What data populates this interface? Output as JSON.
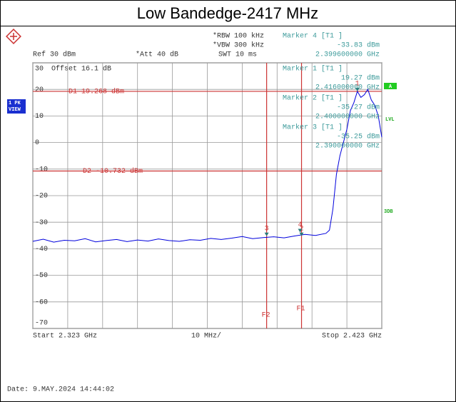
{
  "chart_data": {
    "type": "line",
    "title": "Low Bandedge-2417 MHz",
    "color": "#0000dd",
    "x": [
      2.323,
      2.326,
      2.329,
      2.332,
      2.335,
      2.338,
      2.341,
      2.344,
      2.347,
      2.35,
      2.353,
      2.356,
      2.359,
      2.362,
      2.365,
      2.368,
      2.371,
      2.374,
      2.377,
      2.38,
      2.383,
      2.386,
      2.389,
      2.392,
      2.395,
      2.398,
      2.401,
      2.404,
      2.407,
      2.408,
      2.409,
      2.41,
      2.411,
      2.412,
      2.413,
      2.414,
      2.415,
      2.416,
      2.417,
      2.418,
      2.419,
      2.42,
      2.421,
      2.422,
      2.423
    ],
    "values": [
      -37.2,
      -36.4,
      -37.5,
      -36.8,
      -37.0,
      -36.2,
      -37.4,
      -36.9,
      -36.5,
      -37.3,
      -36.7,
      -37.1,
      -36.3,
      -36.9,
      -37.2,
      -36.6,
      -36.8,
      -36.1,
      -36.5,
      -36.0,
      -35.4,
      -36.2,
      -35.8,
      -35.5,
      -35.9,
      -35.2,
      -34.6,
      -35.0,
      -34.2,
      -33.0,
      -25.0,
      -12.0,
      -5.0,
      0.0,
      5.0,
      12.0,
      15.0,
      19.27,
      17.0,
      18.0,
      20.0,
      16.0,
      14.0,
      10.0,
      2.0
    ],
    "xlim": [
      2.323,
      2.423
    ],
    "ylim": [
      -70,
      30
    ],
    "xticks": [
      2.323,
      2.333,
      2.343,
      2.353,
      2.363,
      2.373,
      2.383,
      2.393,
      2.403,
      2.413,
      2.423
    ],
    "yticks": [
      30,
      20,
      10,
      0,
      -10,
      -20,
      -30,
      -40,
      -50,
      -60,
      -70
    ],
    "grid": true,
    "ref_label": "Ref  30 dBm",
    "att_label": "*Att  40 dB",
    "rbw_label": "*RBW 100 kHz",
    "vbw_label": "*VBW 300 kHz",
    "swt_label": "SWT 10 ms",
    "offset_label": "Offset  16.1 dB",
    "start_label": "Start 2.323 GHz",
    "span_label": "10 MHz/",
    "stop_label": "Stop 2.423 GHz",
    "date": "Date: 9.MAY.2024  14:44:02",
    "trace_labels": [
      "1 PK",
      "VIEW"
    ],
    "side_labels": [
      "A",
      "LVL",
      "3DB"
    ],
    "markers": [
      {
        "name": "Marker 1 [T1 ]",
        "number": "1",
        "value": 19.27,
        "value_label": "19.27 dBm",
        "x": 2.416,
        "x_label": "2.416000000 GHz"
      },
      {
        "name": "Marker 2 [T1 ]",
        "number": "2",
        "value": -35.27,
        "value_label": "-35.27 dBm",
        "x": 2.4,
        "x_label": "2.400000000 GHz"
      },
      {
        "name": "Marker 3 [T1 ]",
        "number": "3",
        "value": -35.25,
        "value_label": "-35.25 dBm",
        "x": 2.39,
        "x_label": "2.390000000 GHz"
      },
      {
        "name": "Marker 4 [T1 ]",
        "number": "4",
        "value": -33.83,
        "value_label": "-33.83 dBm",
        "x": 2.3996,
        "x_label": "2.399600000 GHz"
      }
    ],
    "display_lines": [
      {
        "label": "D1 19.268 dBm",
        "value": 19.268
      },
      {
        "label": "D2 -10.732 dBm",
        "value": -10.732
      }
    ],
    "freq_lines": [
      {
        "label": "F1",
        "x": 2.4
      },
      {
        "label": "F2",
        "x": 2.39
      }
    ]
  }
}
